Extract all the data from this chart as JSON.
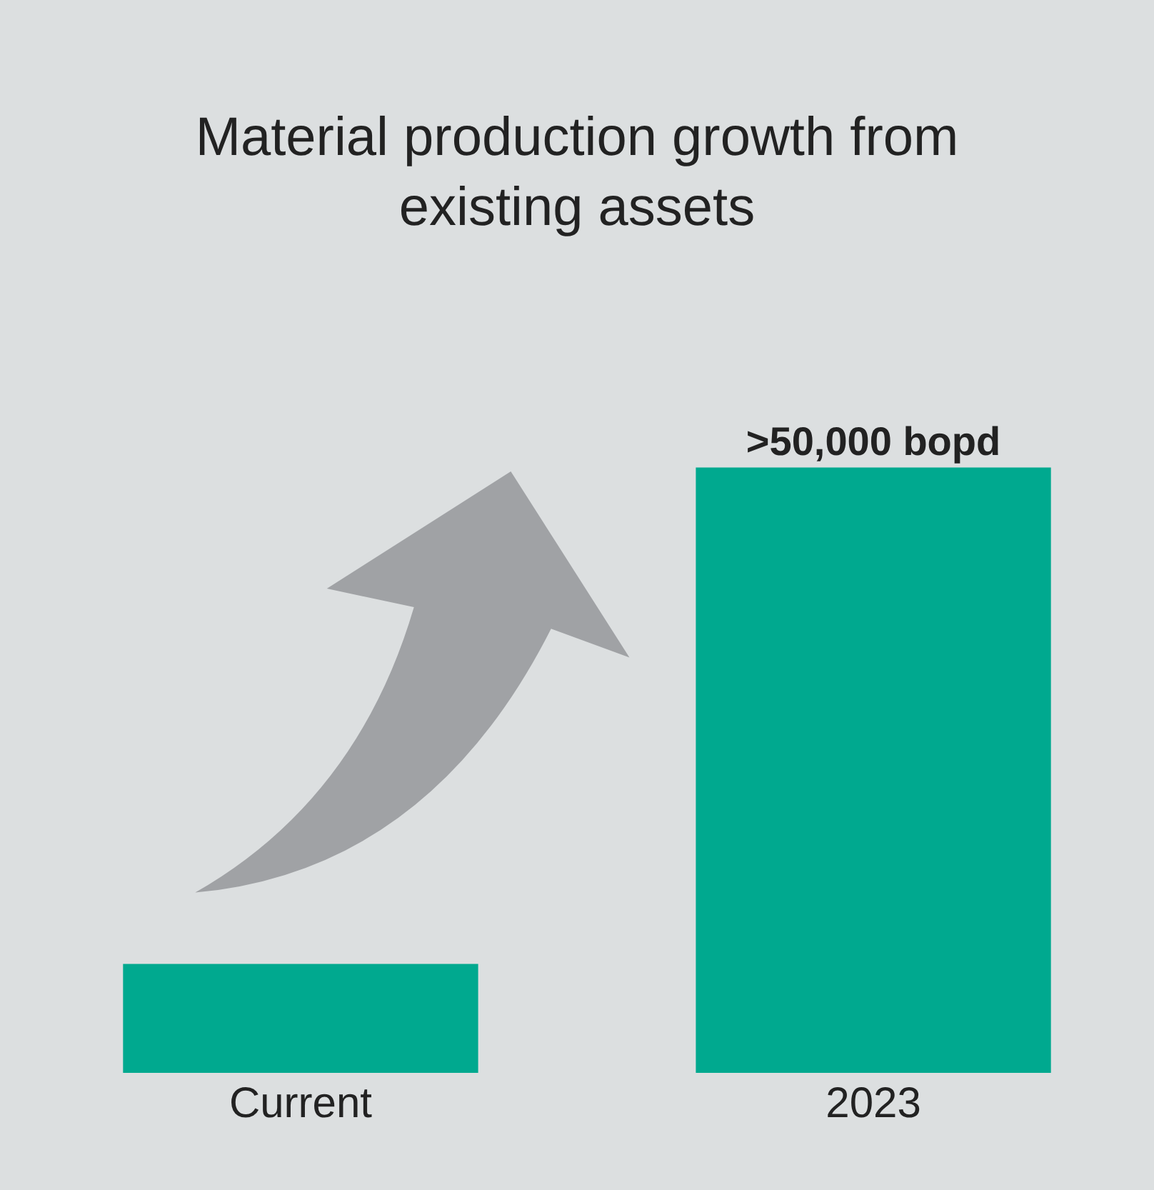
{
  "chart_data": {
    "type": "bar",
    "title": "Material production growth from existing assets",
    "categories": [
      "Current",
      "2023"
    ],
    "values": [
      9000,
      50000
    ],
    "value_labels": [
      null,
      ">50,000 bopd"
    ],
    "tick_labels": "x",
    "color": "#00a98f",
    "grid": false,
    "legend": false
  }
}
